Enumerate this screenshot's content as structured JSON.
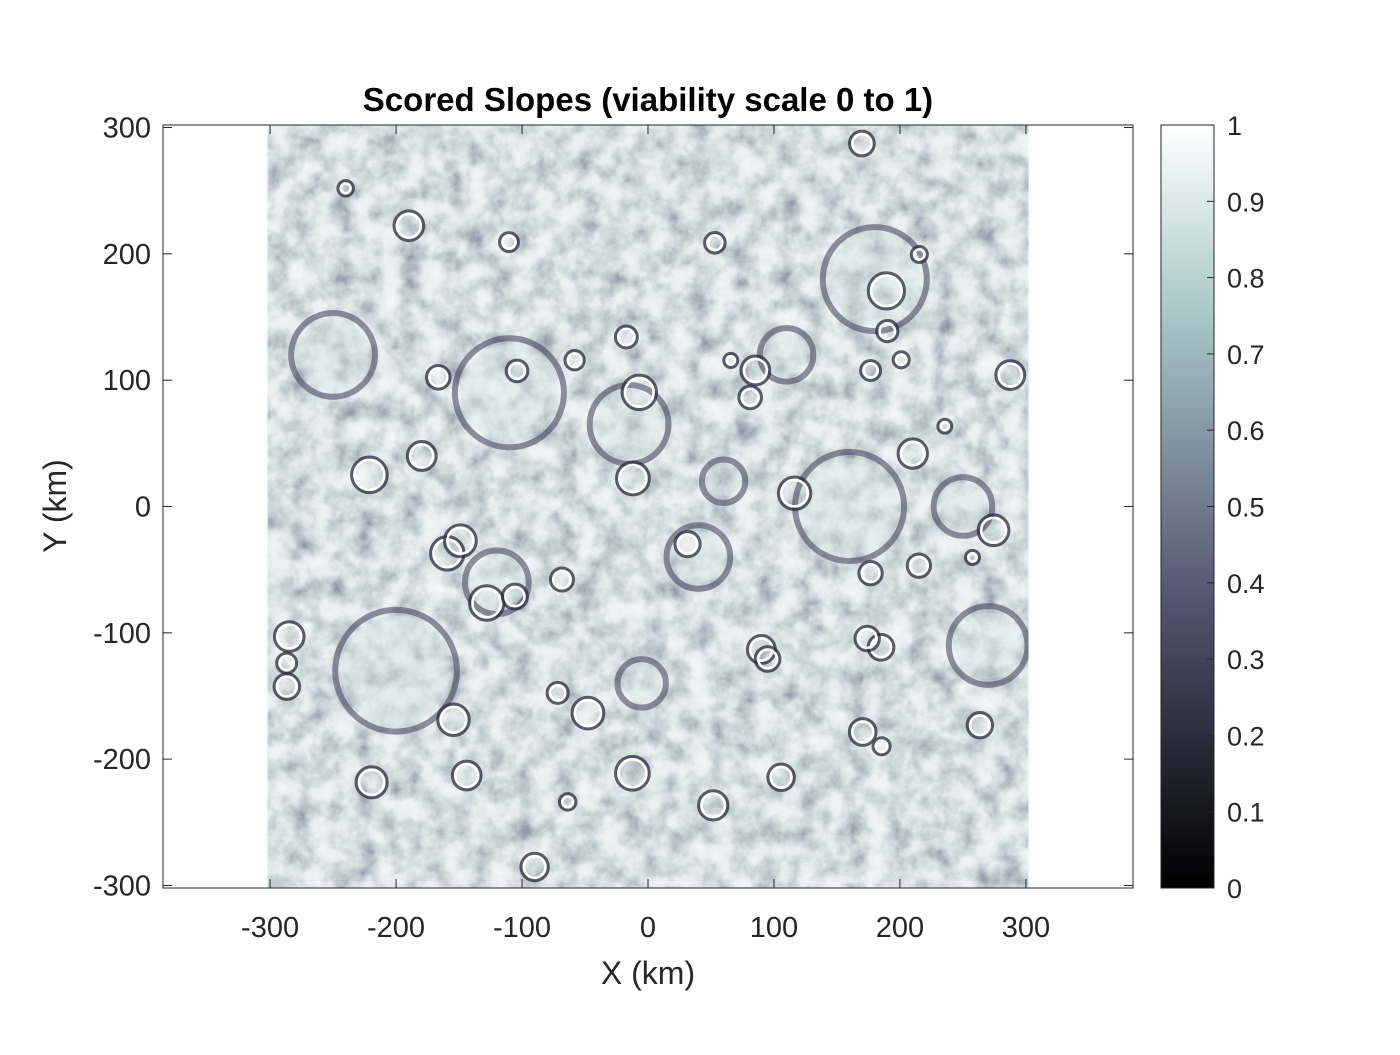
{
  "chart_data": {
    "type": "heatmap",
    "title": "Scored Slopes (viability scale 0 to 1)",
    "xlabel": "X (km)",
    "ylabel": "Y (km)",
    "xlim": [
      -385,
      385
    ],
    "ylim": [
      -302,
      302
    ],
    "data_extent": {
      "x": [
        -302,
        302
      ],
      "y": [
        -302,
        302
      ]
    },
    "x_ticks": [
      -300,
      -200,
      -100,
      0,
      100,
      200,
      300
    ],
    "x_tick_labels": [
      "-300",
      "-200",
      "-100",
      "0",
      "100",
      "200",
      "300"
    ],
    "y_ticks": [
      300,
      200,
      100,
      0,
      -100,
      -200,
      -300
    ],
    "y_tick_labels": [
      "300",
      "200",
      "100",
      "0",
      "-100",
      "-200",
      "-300"
    ],
    "colorbar": {
      "colormap": "bone",
      "range": [
        0,
        1
      ],
      "ticks": [
        1,
        0.9,
        0.8,
        0.7,
        0.6,
        0.5,
        0.4,
        0.3,
        0.2,
        0.1,
        0
      ],
      "tick_labels": [
        "1",
        "0.9",
        "0.8",
        "0.7",
        "0.6",
        "0.5",
        "0.4",
        "0.3",
        "0.2",
        "0.1",
        "0"
      ]
    },
    "grid": false,
    "colors": {
      "high_score": "#e8f2f2",
      "mid_score": "#9fbdbd",
      "low_score": "#5a5a78",
      "zero_score": "#000000"
    }
  }
}
